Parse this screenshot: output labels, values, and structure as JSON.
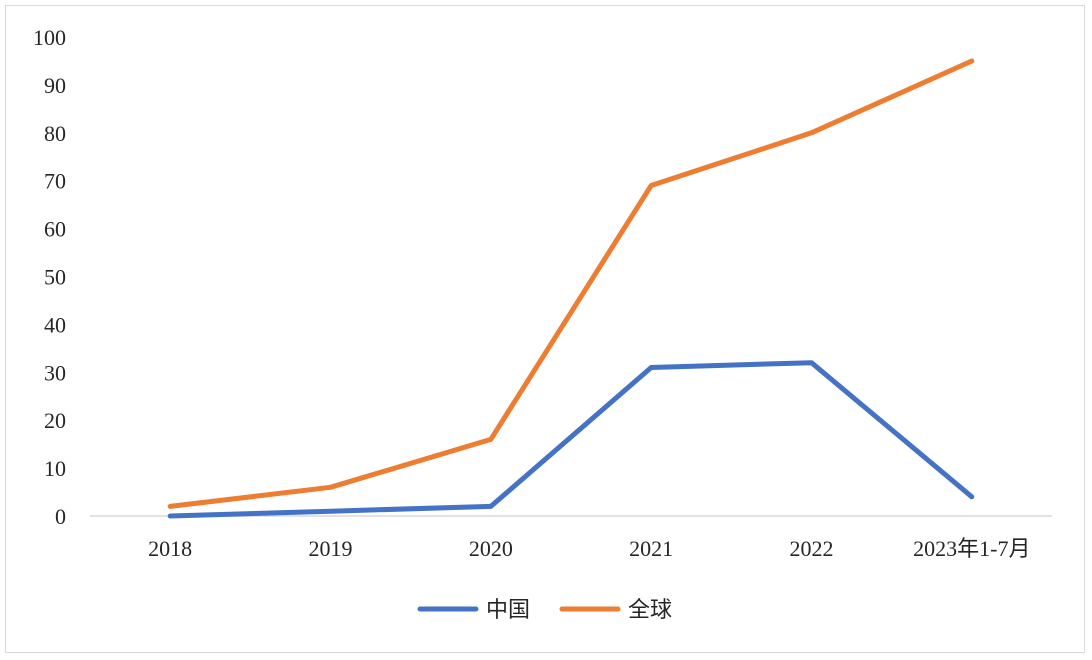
{
  "chart_data": {
    "type": "line",
    "title": "",
    "xlabel": "",
    "ylabel": "",
    "categories": [
      "2018",
      "2019",
      "2020",
      "2021",
      "2022",
      "2023年1-7月"
    ],
    "series": [
      {
        "name": "中国",
        "color": "#4472C4",
        "values": [
          0,
          1,
          2,
          31,
          32,
          4
        ]
      },
      {
        "name": "全球",
        "color": "#ED7D31",
        "values": [
          2,
          6,
          16,
          69,
          80,
          95
        ]
      }
    ],
    "ylim": [
      0,
      100
    ],
    "yticks": [
      0,
      10,
      20,
      30,
      40,
      50,
      60,
      70,
      80,
      90,
      100
    ],
    "grid": false,
    "legend": "bottom"
  }
}
